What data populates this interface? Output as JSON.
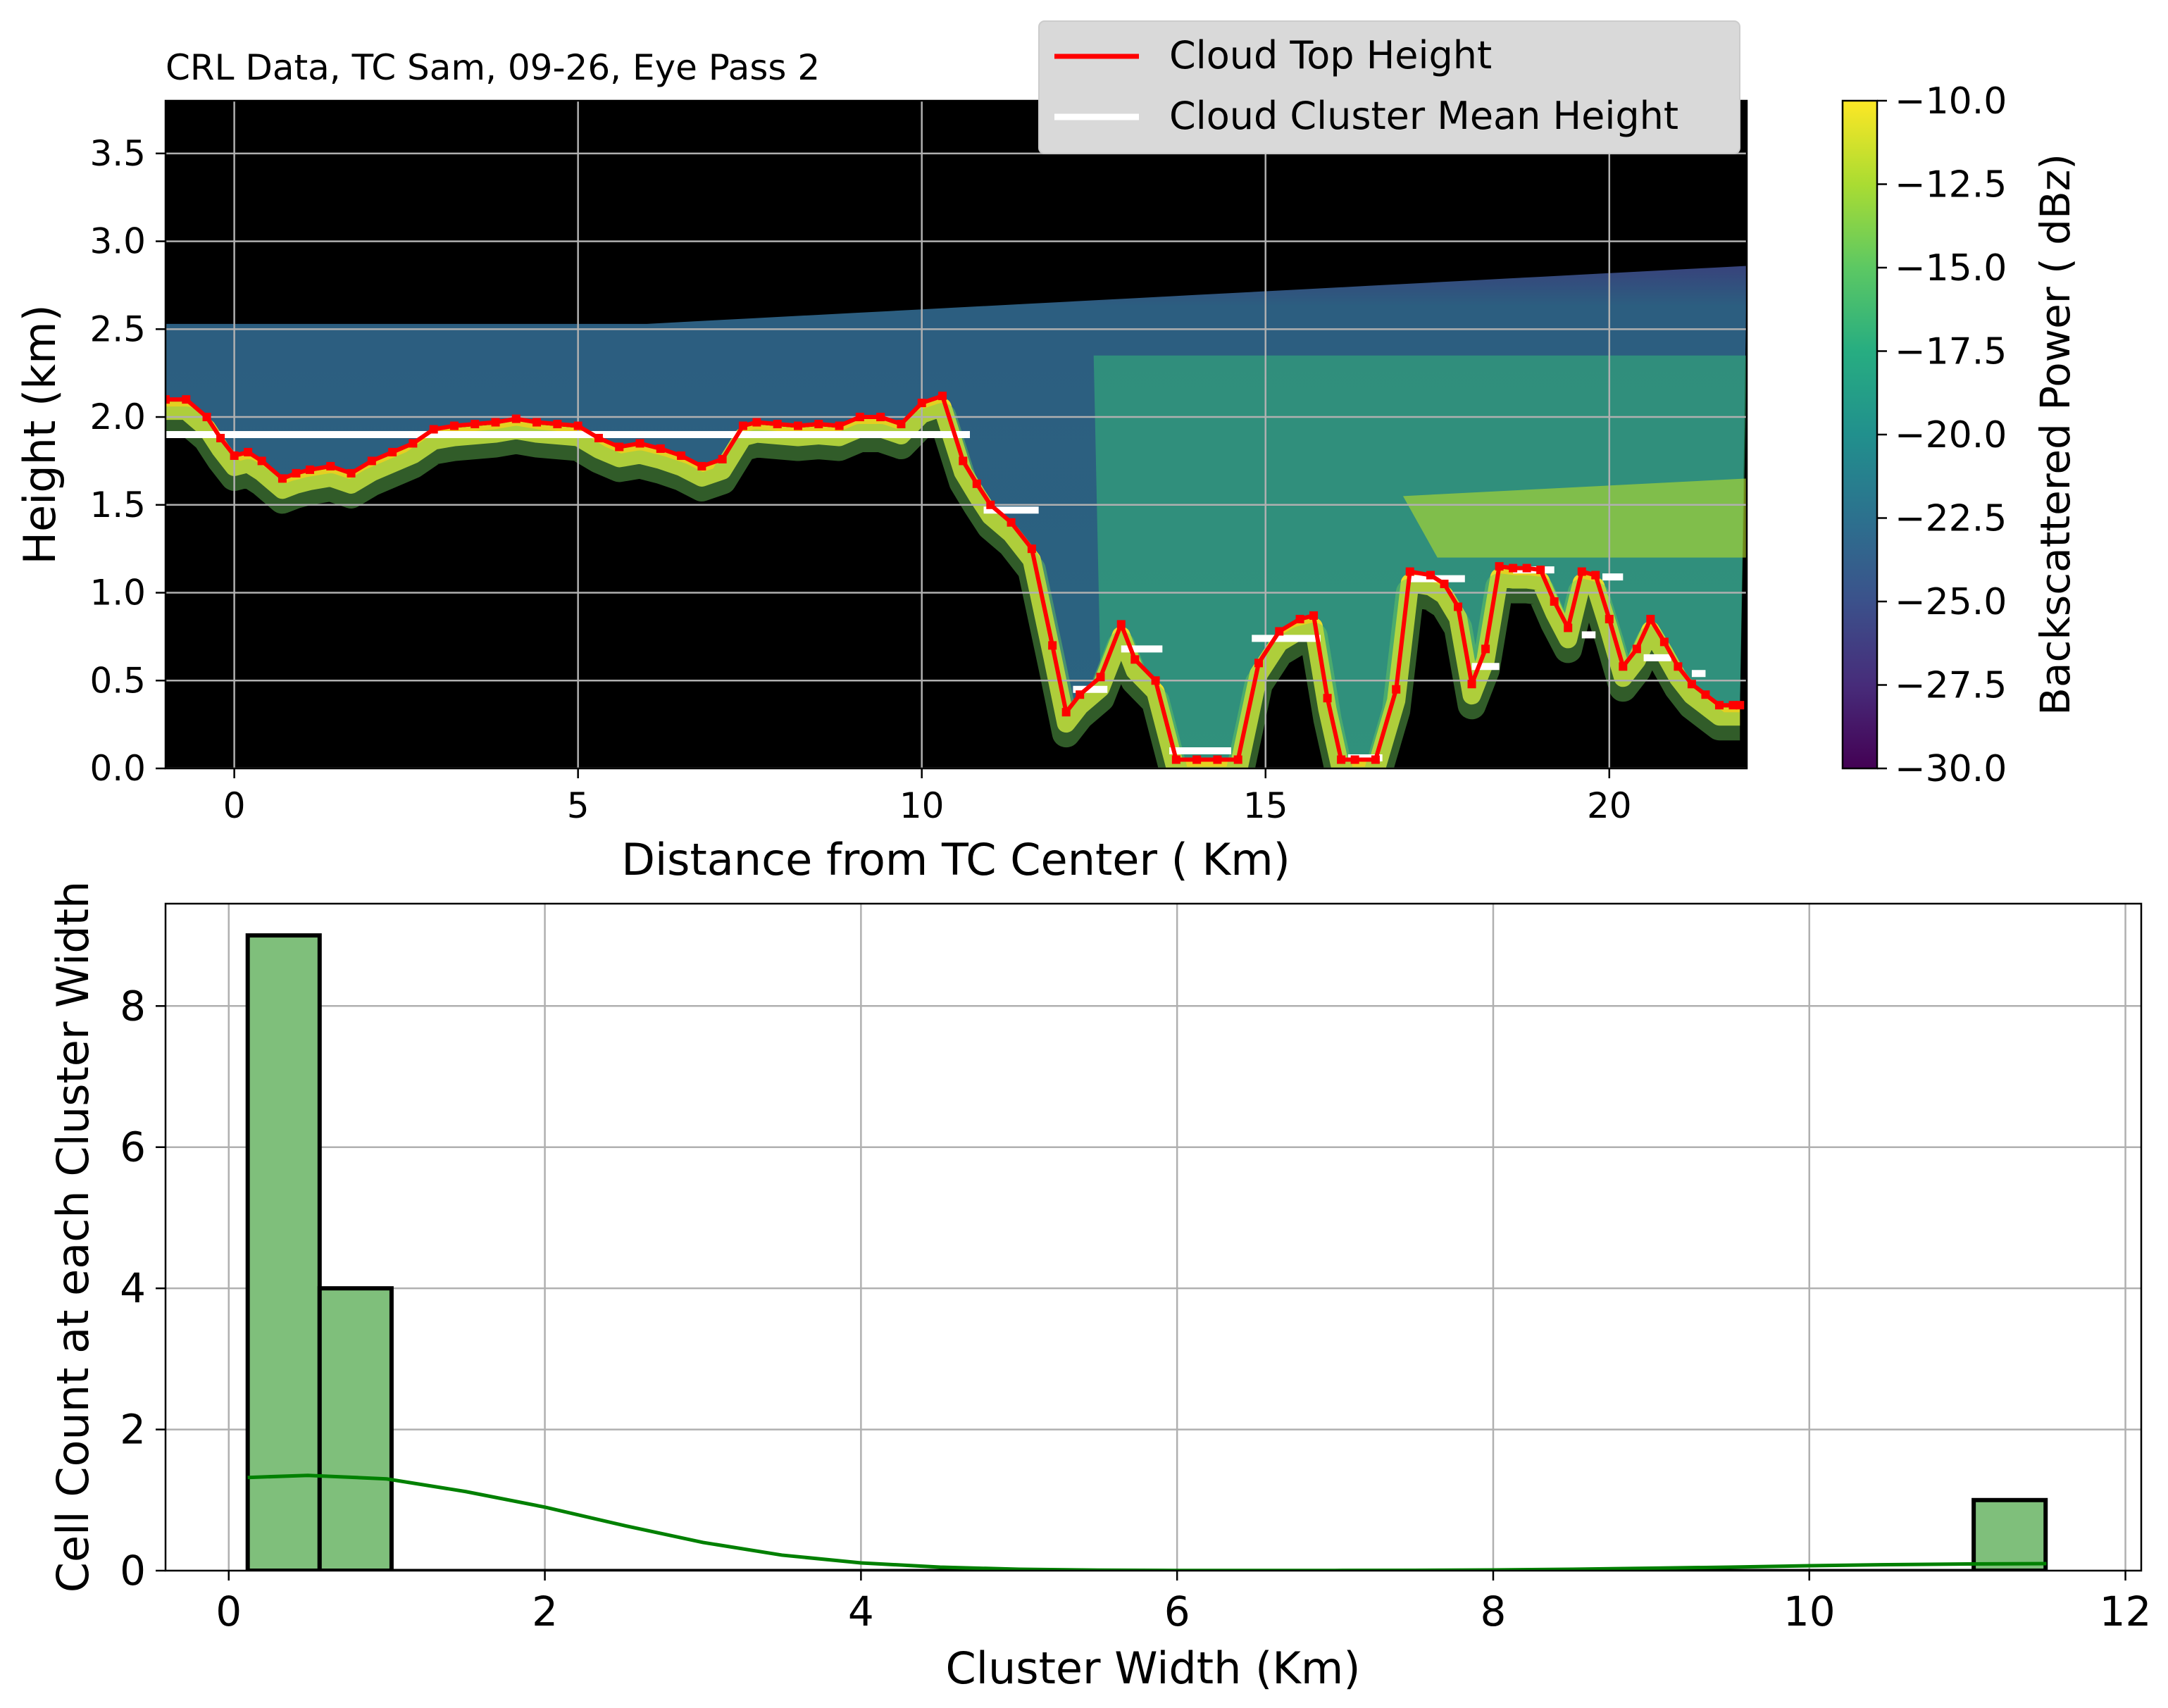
{
  "chart_data": [
    {
      "type": "heatmap",
      "title": "CRL Data, TC Sam, 09-26, Eye Pass 2",
      "xlabel": "Distance from TC Center ( Km)",
      "ylabel": "Height (km)",
      "xlim": [
        -1,
        22
      ],
      "ylim": [
        0,
        3.8
      ],
      "xticks": [
        0,
        5,
        10,
        15,
        20
      ],
      "xtick_labels": [
        "0",
        "5",
        "10",
        "15",
        "20"
      ],
      "yticks": [
        0.0,
        0.5,
        1.0,
        1.5,
        2.0,
        2.5,
        3.0,
        3.5
      ],
      "ytick_labels": [
        "0.0",
        "0.5",
        "1.0",
        "1.5",
        "2.0",
        "2.5",
        "3.0",
        "3.5"
      ],
      "grid": true,
      "legend_position": "top-right",
      "colormap": "viridis",
      "colorbar": {
        "label": "Backscattered Power ( dBz)",
        "range": [
          -30,
          -10
        ],
        "ticks": [
          -10.0,
          -12.5,
          -15.0,
          -17.5,
          -20.0,
          -22.5,
          -25.0,
          -27.5,
          -30.0
        ],
        "tick_labels": [
          "−10.0",
          "−12.5",
          "−15.0",
          "−17.5",
          "−20.0",
          "−22.5",
          "−25.0",
          "−27.5",
          "−30.0"
        ]
      },
      "series": [
        {
          "name": "Cloud Top Height",
          "color": "#ff0000",
          "x": [
            -1.0,
            -0.7,
            -0.4,
            -0.2,
            0.0,
            0.2,
            0.4,
            0.7,
            0.9,
            1.1,
            1.4,
            1.7,
            2.0,
            2.3,
            2.6,
            2.9,
            3.2,
            3.5,
            3.8,
            4.1,
            4.4,
            4.7,
            5.0,
            5.3,
            5.6,
            5.9,
            6.2,
            6.5,
            6.8,
            7.1,
            7.4,
            7.6,
            7.9,
            8.2,
            8.5,
            8.8,
            9.1,
            9.4,
            9.7,
            10.0,
            10.3,
            10.6,
            10.8,
            11.0,
            11.3,
            11.6,
            11.9,
            12.1,
            12.3,
            12.6,
            12.9,
            13.1,
            13.4,
            13.7,
            14.0,
            14.3,
            14.6,
            14.9,
            15.2,
            15.5,
            15.7,
            15.9,
            16.1,
            16.3,
            16.6,
            16.9,
            17.1,
            17.4,
            17.6,
            17.8,
            18.0,
            18.2,
            18.4,
            18.6,
            18.8,
            19.0,
            19.2,
            19.4,
            19.6,
            19.8,
            20.0,
            20.2,
            20.4,
            20.6,
            20.8,
            21.0,
            21.2,
            21.4,
            21.6,
            21.8,
            21.9
          ],
          "y": [
            2.1,
            2.1,
            2.0,
            1.88,
            1.78,
            1.8,
            1.75,
            1.65,
            1.68,
            1.7,
            1.72,
            1.68,
            1.75,
            1.8,
            1.85,
            1.93,
            1.95,
            1.96,
            1.97,
            1.99,
            1.97,
            1.96,
            1.95,
            1.88,
            1.83,
            1.85,
            1.82,
            1.78,
            1.72,
            1.76,
            1.95,
            1.97,
            1.96,
            1.95,
            1.96,
            1.95,
            2.0,
            2.0,
            1.96,
            2.08,
            2.12,
            1.75,
            1.62,
            1.5,
            1.4,
            1.25,
            0.7,
            0.32,
            0.42,
            0.52,
            0.82,
            0.62,
            0.5,
            0.05,
            0.05,
            0.05,
            0.05,
            0.6,
            0.78,
            0.85,
            0.87,
            0.4,
            0.05,
            0.05,
            0.05,
            0.45,
            1.12,
            1.1,
            1.05,
            0.92,
            0.48,
            0.68,
            1.15,
            1.14,
            1.14,
            1.13,
            0.95,
            0.8,
            1.12,
            1.1,
            0.85,
            0.58,
            0.68,
            0.85,
            0.72,
            0.58,
            0.48,
            0.42,
            0.36,
            0.36,
            0.36
          ]
        },
        {
          "name": "Cloud Cluster Mean Height",
          "color": "#ffffff",
          "segments": [
            {
              "x": [
                -1.0,
                10.7
              ],
              "y": 1.9
            },
            {
              "x": [
                10.9,
                11.7
              ],
              "y": 1.47
            },
            {
              "x": [
                12.2,
                12.7
              ],
              "y": 0.45
            },
            {
              "x": [
                12.9,
                13.5
              ],
              "y": 0.68
            },
            {
              "x": [
                13.6,
                14.5
              ],
              "y": 0.1
            },
            {
              "x": [
                14.8,
                15.8
              ],
              "y": 0.74
            },
            {
              "x": [
                16.2,
                16.7
              ],
              "y": 0.06
            },
            {
              "x": [
                17.1,
                17.9
              ],
              "y": 1.08
            },
            {
              "x": [
                18.0,
                18.4
              ],
              "y": 0.58
            },
            {
              "x": [
                18.6,
                19.2
              ],
              "y": 1.13
            },
            {
              "x": [
                19.6,
                19.8
              ],
              "y": 0.76
            },
            {
              "x": [
                19.9,
                20.2
              ],
              "y": 1.09
            },
            {
              "x": [
                20.5,
                20.9
              ],
              "y": 0.63
            },
            {
              "x": [
                21.2,
                21.4
              ],
              "y": 0.54
            }
          ]
        }
      ]
    },
    {
      "type": "bar",
      "title": "",
      "xlabel": "Cluster Width (Km)",
      "ylabel": "Cell Count at each Cluster Width",
      "xlim": [
        -0.4,
        12.1
      ],
      "ylim": [
        0,
        9.45
      ],
      "xticks": [
        0,
        2,
        4,
        6,
        8,
        10,
        12
      ],
      "xtick_labels": [
        "0",
        "2",
        "4",
        "6",
        "8",
        "10",
        "12"
      ],
      "yticks": [
        0,
        2,
        4,
        6,
        8
      ],
      "ytick_labels": [
        "0",
        "2",
        "4",
        "6",
        "8"
      ],
      "grid": true,
      "bin_edges": [
        0.12,
        0.575,
        1.03,
        1.485,
        1.94,
        2.395,
        2.85,
        3.305,
        3.76,
        4.215,
        4.67,
        5.125,
        5.58,
        6.035,
        6.49,
        6.945,
        7.4,
        7.855,
        8.31,
        8.765,
        9.22,
        9.675,
        10.13,
        10.585,
        11.04,
        11.495
      ],
      "values": [
        9,
        4,
        0,
        0,
        0,
        0,
        0,
        0,
        0,
        0,
        0,
        0,
        0,
        0,
        0,
        0,
        0,
        0,
        0,
        0,
        0,
        0,
        0,
        0,
        1
      ],
      "bar_color": "#7fbf7b",
      "kde": {
        "color": "#008000",
        "x": [
          0.12,
          0.5,
          1.0,
          1.5,
          2.0,
          2.5,
          3.0,
          3.5,
          4.0,
          4.5,
          5.0,
          5.5,
          6.0,
          6.5,
          7.0,
          7.5,
          8.0,
          8.5,
          9.0,
          9.5,
          10.0,
          10.5,
          11.0,
          11.5
        ],
        "y": [
          1.32,
          1.35,
          1.3,
          1.12,
          0.9,
          0.64,
          0.4,
          0.22,
          0.11,
          0.05,
          0.02,
          0.007,
          0.003,
          0.002,
          0.003,
          0.005,
          0.01,
          0.02,
          0.035,
          0.05,
          0.07,
          0.085,
          0.095,
          0.1
        ]
      }
    }
  ]
}
